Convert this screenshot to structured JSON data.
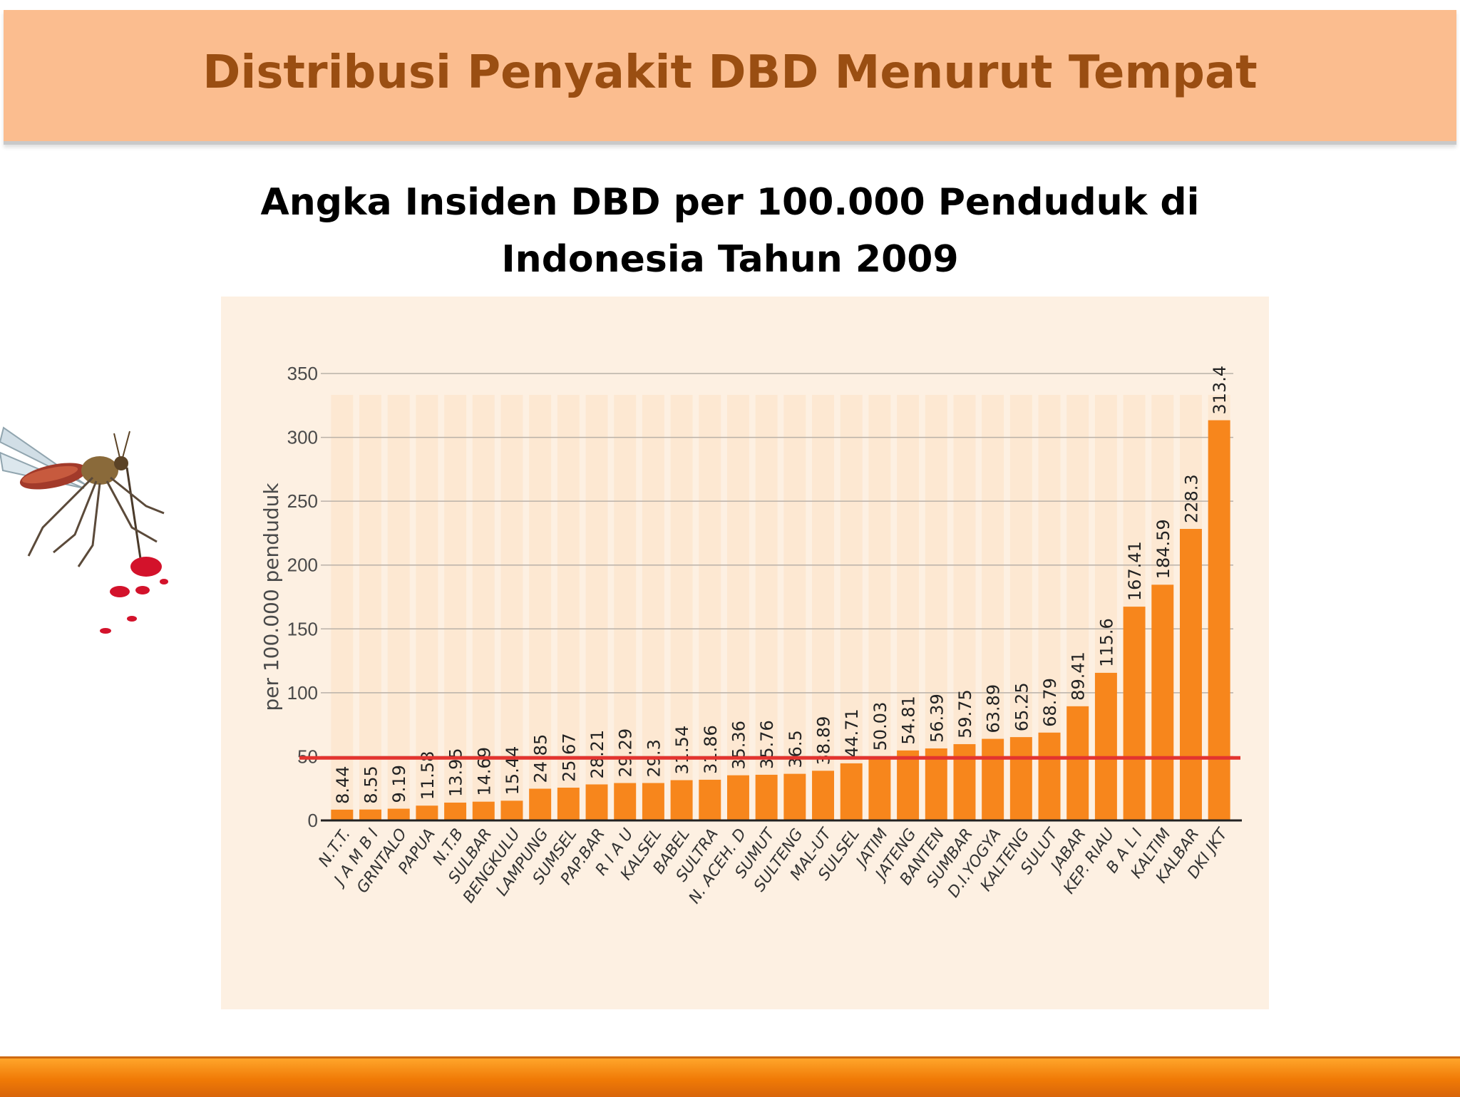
{
  "slide_title": "Distribusi Penyakit DBD Menurut Tempat",
  "chart_heading_line1": "Angka Insiden  DBD per 100.000 Penduduk di",
  "chart_heading_line2": "Indonesia Tahun 2009",
  "colors": {
    "header_band": "#fbbd8f",
    "title_text": "#9a4e12",
    "bar": "#f7861c",
    "reference_line": "#e3342f",
    "chart_background": "#fdf0e2",
    "footer_band": "#f28a14"
  },
  "chart_data": {
    "type": "bar",
    "title": "",
    "xlabel": "",
    "ylabel": "per 100.000 penduduk",
    "ylim": [
      0,
      350
    ],
    "yticks": [
      0,
      50,
      100,
      150,
      200,
      250,
      300,
      350
    ],
    "grid": true,
    "reference_line": 49,
    "categories": [
      "N.T.T.",
      "J A M B I",
      "GRNTALO",
      "PAPUA",
      "N.T.B",
      "SULBAR",
      "BENGKULU",
      "LAMPUNG",
      "SUMSEL",
      "PAP.BAR",
      "R I A U",
      "KALSEL",
      "BABEL",
      "SULTRA",
      "N. ACEH. D",
      "SUMUT",
      "SULTENG",
      "MAL-UT",
      "SULSEL",
      "JATIM",
      "JATENG",
      "BANTEN",
      "SUMBAR",
      "D.I.YOGYA",
      "KALTENG",
      "SULUT",
      "JABAR",
      "KEP. RIAU",
      "B A L I",
      "KALTIM",
      "KALBAR",
      "DKI JKT"
    ],
    "values": [
      8.44,
      8.55,
      9.19,
      11.58,
      13.95,
      14.69,
      15.44,
      24.85,
      25.67,
      28.21,
      29.29,
      29.3,
      31.54,
      31.86,
      35.36,
      35.76,
      36.5,
      38.89,
      44.71,
      50.03,
      54.81,
      56.39,
      59.75,
      63.89,
      65.25,
      68.79,
      89.41,
      115.6,
      167.41,
      184.59,
      228.3,
      313.4
    ],
    "value_labels": [
      "8.44",
      "8.55",
      "9.19",
      "11.58",
      "13.95",
      "14.69",
      "15.44",
      "24.85",
      "25.67",
      "28.21",
      "29.29",
      "29.3",
      "31.54",
      "31.86",
      "35.36",
      "35.76",
      "36.5",
      "38.89",
      "44.71",
      "50.03",
      "54.81",
      "56.39",
      "59.75",
      "63.89",
      "65.25",
      "68.79",
      "89.41",
      "115.6",
      "167.41",
      "184.59",
      "228.3",
      "313.4"
    ]
  }
}
